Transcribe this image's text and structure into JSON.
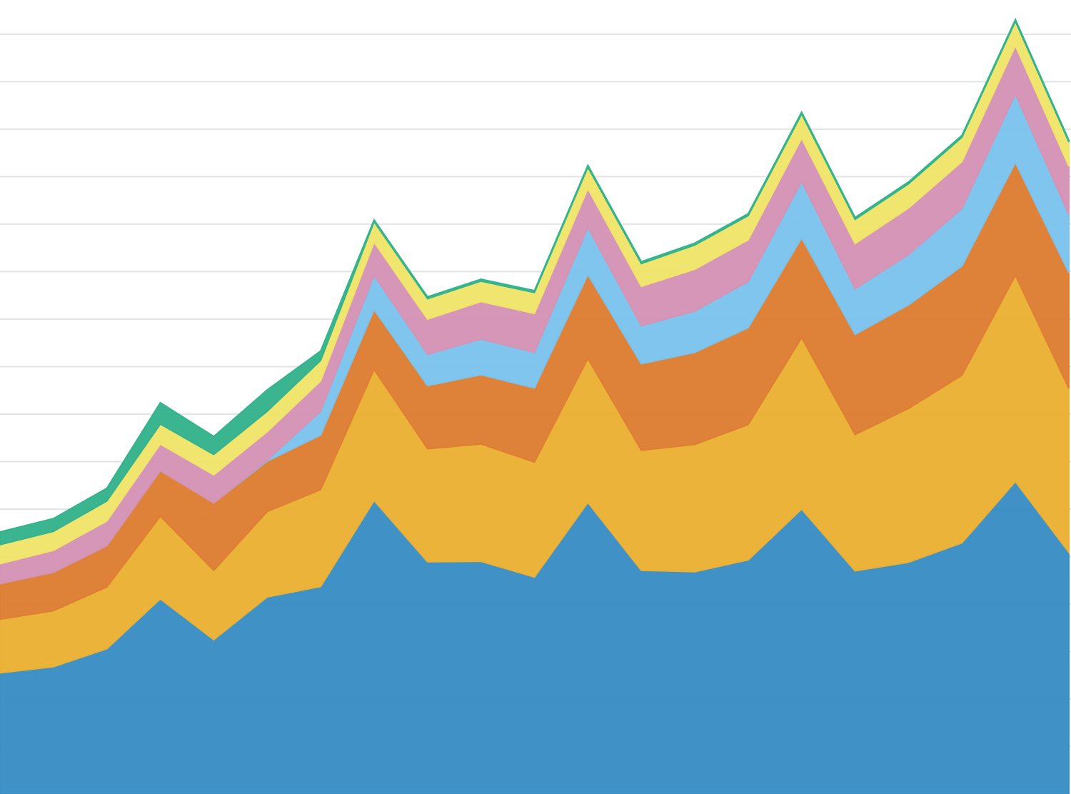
{
  "chart_data": {
    "type": "area",
    "stacked": true,
    "title": "",
    "xlabel": "",
    "ylabel": "",
    "x": [
      0,
      1,
      2,
      3,
      4,
      5,
      6,
      7,
      8,
      9,
      10,
      11,
      12,
      13,
      14,
      15,
      16,
      17,
      18,
      19,
      20
    ],
    "ylim": [
      0,
      16.6
    ],
    "grid": true,
    "legend": "none",
    "series": [
      {
        "color": "#3a8ec4",
        "values": [
          2.55,
          2.68,
          3.06,
          4.11,
          3.25,
          4.15,
          4.37,
          6.18,
          4.89,
          4.9,
          4.57,
          6.14,
          4.71,
          4.68,
          4.93,
          6.0,
          4.7,
          4.88,
          5.29,
          6.58,
          5.09
        ]
      },
      {
        "color": "#ebb135",
        "values": [
          1.13,
          1.18,
          1.3,
          1.74,
          1.46,
          1.8,
          2.04,
          2.76,
          2.38,
          2.47,
          2.42,
          3.03,
          2.53,
          2.68,
          2.85,
          3.61,
          2.87,
          3.24,
          3.53,
          4.34,
          3.45
        ]
      },
      {
        "color": "#de7e33",
        "values": [
          0.75,
          0.81,
          0.87,
          0.96,
          1.42,
          1.06,
          1.15,
          1.26,
          1.33,
          1.46,
          1.56,
          1.77,
          1.82,
          1.94,
          2.04,
          2.1,
          2.11,
          2.18,
          2.3,
          2.38,
          2.44
        ]
      },
      {
        "color": "#7bc3ec",
        "values": [
          0.0,
          0.0,
          0.0,
          0.0,
          0.0,
          0.02,
          0.5,
          0.72,
          0.66,
          0.75,
          0.75,
          0.99,
          0.8,
          0.87,
          0.97,
          1.19,
          0.96,
          1.06,
          1.21,
          1.44,
          1.22
        ]
      },
      {
        "color": "#d593b6",
        "values": [
          0.42,
          0.46,
          0.52,
          0.56,
          0.59,
          0.6,
          0.64,
          0.7,
          0.74,
          0.79,
          0.82,
          0.82,
          0.83,
          0.88,
          0.88,
          0.91,
          0.95,
          0.98,
          0.99,
          1.02,
          1.02
        ]
      },
      {
        "color": "#f0e46a",
        "values": [
          0.4,
          0.4,
          0.42,
          0.42,
          0.43,
          0.43,
          0.43,
          0.43,
          0.43,
          0.43,
          0.44,
          0.45,
          0.48,
          0.51,
          0.51,
          0.51,
          0.51,
          0.51,
          0.51,
          0.51,
          0.51
        ]
      },
      {
        "color": "#35b38c",
        "values": [
          0.27,
          0.27,
          0.27,
          0.45,
          0.38,
          0.45,
          0.2,
          0.04,
          0.04,
          0.04,
          0.04,
          0.04,
          0.04,
          0.04,
          0.04,
          0.04,
          0.04,
          0.04,
          0.04,
          0.04,
          0.04
        ]
      }
    ]
  }
}
